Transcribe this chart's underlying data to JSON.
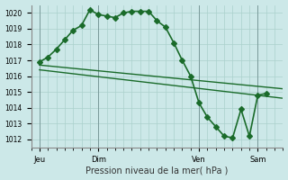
{
  "bg_color": "#cce8e8",
  "grid_color": "#aad0cc",
  "line_color": "#1a6b2a",
  "xlabel": "Pression niveau de la mer( hPa )",
  "ylim": [
    1011.5,
    1020.5
  ],
  "yticks": [
    1012,
    1013,
    1014,
    1015,
    1016,
    1017,
    1018,
    1019,
    1020
  ],
  "xlim": [
    0,
    30
  ],
  "x_tick_positions": [
    1,
    8,
    20,
    27
  ],
  "x_tick_labels": [
    "Jeu",
    "Dim",
    "Ven",
    "Sam"
  ],
  "vline_positions": [
    1,
    8,
    20,
    27
  ],
  "series1_x": [
    1,
    2,
    3,
    4,
    5,
    6,
    7,
    8,
    9,
    10,
    11,
    12,
    13,
    14,
    15,
    16,
    17,
    18,
    19,
    20,
    21,
    22,
    23,
    24,
    25,
    26,
    27,
    28
  ],
  "series1_y": [
    1016.9,
    1017.2,
    1017.7,
    1018.3,
    1018.9,
    1019.2,
    1020.2,
    1019.9,
    1019.8,
    1019.7,
    1020.0,
    1020.1,
    1020.1,
    1020.1,
    1019.5,
    1019.1,
    1018.1,
    1017.0,
    1016.0,
    1014.3,
    1013.4,
    1012.8,
    1012.2,
    1012.1,
    1013.9,
    1012.2,
    1014.8,
    1014.9
  ],
  "series2_x": [
    1,
    30
  ],
  "series2_y": [
    1016.7,
    1015.2
  ],
  "series3_x": [
    1,
    30
  ],
  "series3_y": [
    1016.4,
    1014.6
  ]
}
